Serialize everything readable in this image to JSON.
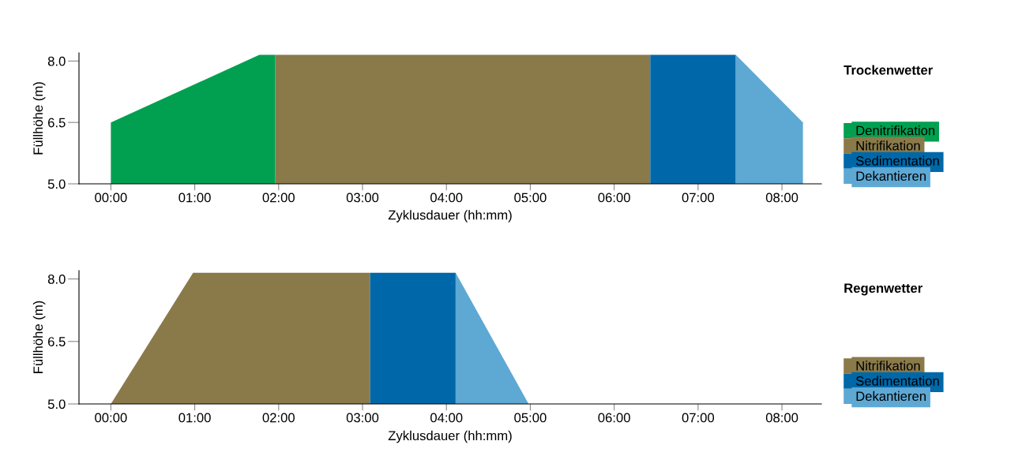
{
  "chart_data": [
    {
      "type": "area",
      "xlabel": "Zyklusdauer (hh:mm)",
      "ylabel": "Füllhöhe (m)",
      "legend_title": "Trockenwetter",
      "legend": "right",
      "xlim": [
        -0.38,
        8.47
      ],
      "ylim": [
        5.0,
        8.2
      ],
      "xticks": [
        {
          "value": 0,
          "label": "00:00"
        },
        {
          "value": 1,
          "label": "01:00"
        },
        {
          "value": 2,
          "label": "02:00"
        },
        {
          "value": 3,
          "label": "03:00"
        },
        {
          "value": 4,
          "label": "04:00"
        },
        {
          "value": 5,
          "label": "05:00"
        },
        {
          "value": 6,
          "label": "06:00"
        },
        {
          "value": 7,
          "label": "07:00"
        },
        {
          "value": 8,
          "label": "08:00"
        }
      ],
      "yticks": [
        {
          "value": 5.0,
          "label": "5.0"
        },
        {
          "value": 6.5,
          "label": "6.5"
        },
        {
          "value": 8.0,
          "label": "8.0"
        }
      ],
      "series": [
        {
          "name": "Denitrifikation",
          "color": "#00a050",
          "x": [
            0,
            1.77,
            1.96
          ],
          "values": [
            6.5,
            8.15,
            8.15
          ]
        },
        {
          "name": "Nitrifikation",
          "color": "#8a7a4a",
          "x": [
            1.96,
            6.43
          ],
          "values": [
            8.15,
            8.15
          ]
        },
        {
          "name": "Sedimentation",
          "color": "#0068a8",
          "x": [
            6.43,
            7.45
          ],
          "values": [
            8.15,
            8.15
          ]
        },
        {
          "name": "Dekantieren",
          "color": "#5ea8d4",
          "x": [
            7.45,
            8.25
          ],
          "values": [
            8.15,
            6.5
          ]
        }
      ]
    },
    {
      "type": "area",
      "xlabel": "Zyklusdauer (hh:mm)",
      "ylabel": "Füllhöhe (m)",
      "legend_title": "Regenwetter",
      "legend": "right",
      "xlim": [
        -0.38,
        8.47
      ],
      "ylim": [
        5.0,
        8.2
      ],
      "xticks": [
        {
          "value": 0,
          "label": "00:00"
        },
        {
          "value": 1,
          "label": "01:00"
        },
        {
          "value": 2,
          "label": "02:00"
        },
        {
          "value": 3,
          "label": "03:00"
        },
        {
          "value": 4,
          "label": "04:00"
        },
        {
          "value": 5,
          "label": "05:00"
        },
        {
          "value": 6,
          "label": "06:00"
        },
        {
          "value": 7,
          "label": "07:00"
        },
        {
          "value": 8,
          "label": "08:00"
        }
      ],
      "yticks": [
        {
          "value": 5.0,
          "label": "5.0"
        },
        {
          "value": 6.5,
          "label": "6.5"
        },
        {
          "value": 8.0,
          "label": "8.0"
        }
      ],
      "series": [
        {
          "name": "Nitrifikation",
          "color": "#8a7a4a",
          "x": [
            0,
            0.98,
            3.09
          ],
          "values": [
            5.0,
            8.15,
            8.15
          ]
        },
        {
          "name": "Sedimentation",
          "color": "#0068a8",
          "x": [
            3.09,
            4.11
          ],
          "values": [
            8.15,
            8.15
          ]
        },
        {
          "name": "Dekantieren",
          "color": "#5ea8d4",
          "x": [
            4.11,
            4.98
          ],
          "values": [
            8.15,
            5.0
          ]
        }
      ]
    }
  ]
}
